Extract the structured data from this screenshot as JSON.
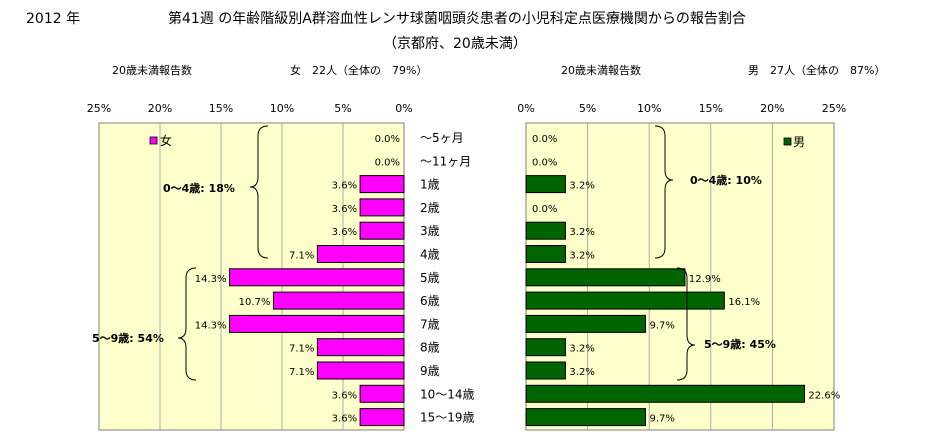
{
  "header": {
    "year": "2012 年",
    "title": "第41週 の年齢階級別A群溶血性レンサ球菌咽頭炎患者の小児科定点医療機関からの報告割合",
    "subtitle": "（京都府、20歳未満）"
  },
  "female_panel": {
    "heading_left": "20歳未満報告数",
    "heading_right": "女　22人（全体の　79%）",
    "legend": "女",
    "group1_label": "0～4歳: 18%",
    "group2_label": "5～9歳: 54%",
    "color": "#ff00ff"
  },
  "male_panel": {
    "heading_left": "20歳未満報告数",
    "heading_right": "男　27人（全体の　87%）",
    "legend": "男",
    "group1_label": "0～4歳: 10%",
    "group2_label": "5～9歳: 45%",
    "color": "#006400"
  },
  "chart_data": [
    {
      "type": "bar",
      "orientation": "horizontal-reversed",
      "series": [
        {
          "name": "女",
          "values": [
            0.0,
            0.0,
            3.6,
            3.6,
            3.6,
            7.1,
            14.3,
            10.7,
            14.3,
            7.1,
            7.1,
            3.6,
            3.6
          ]
        }
      ],
      "categories": [
        "～5ヶ月",
        "～11ヶ月",
        "1歳",
        "2歳",
        "3歳",
        "4歳",
        "5歳",
        "6歳",
        "7歳",
        "8歳",
        "9歳",
        "10～14歳",
        "15～19歳"
      ],
      "value_labels": [
        "0.0%",
        "0.0%",
        "3.6%",
        "3.6%",
        "3.6%",
        "7.1%",
        "14.3%",
        "10.7%",
        "14.3%",
        "7.1%",
        "7.1%",
        "3.6%",
        "3.6%"
      ],
      "xlim": [
        0,
        25
      ],
      "ticks": [
        "25%",
        "20%",
        "15%",
        "10%",
        "5%",
        "0%"
      ],
      "grid": true
    },
    {
      "type": "bar",
      "orientation": "horizontal",
      "series": [
        {
          "name": "男",
          "values": [
            0.0,
            0.0,
            3.2,
            0.0,
            3.2,
            3.2,
            12.9,
            16.1,
            9.7,
            3.2,
            3.2,
            22.6,
            9.7
          ]
        }
      ],
      "categories": [
        "～5ヶ月",
        "～11ヶ月",
        "1歳",
        "2歳",
        "3歳",
        "4歳",
        "5歳",
        "6歳",
        "7歳",
        "8歳",
        "9歳",
        "10～14歳",
        "15～19歳"
      ],
      "value_labels": [
        "0.0%",
        "0.0%",
        "3.2%",
        "0.0%",
        "3.2%",
        "3.2%",
        "12.9%",
        "16.1%",
        "9.7%",
        "3.2%",
        "3.2%",
        "22.6%",
        "9.7%"
      ],
      "xlim": [
        0,
        25
      ],
      "ticks": [
        "0%",
        "5%",
        "10%",
        "15%",
        "20%",
        "25%"
      ],
      "grid": true
    }
  ]
}
